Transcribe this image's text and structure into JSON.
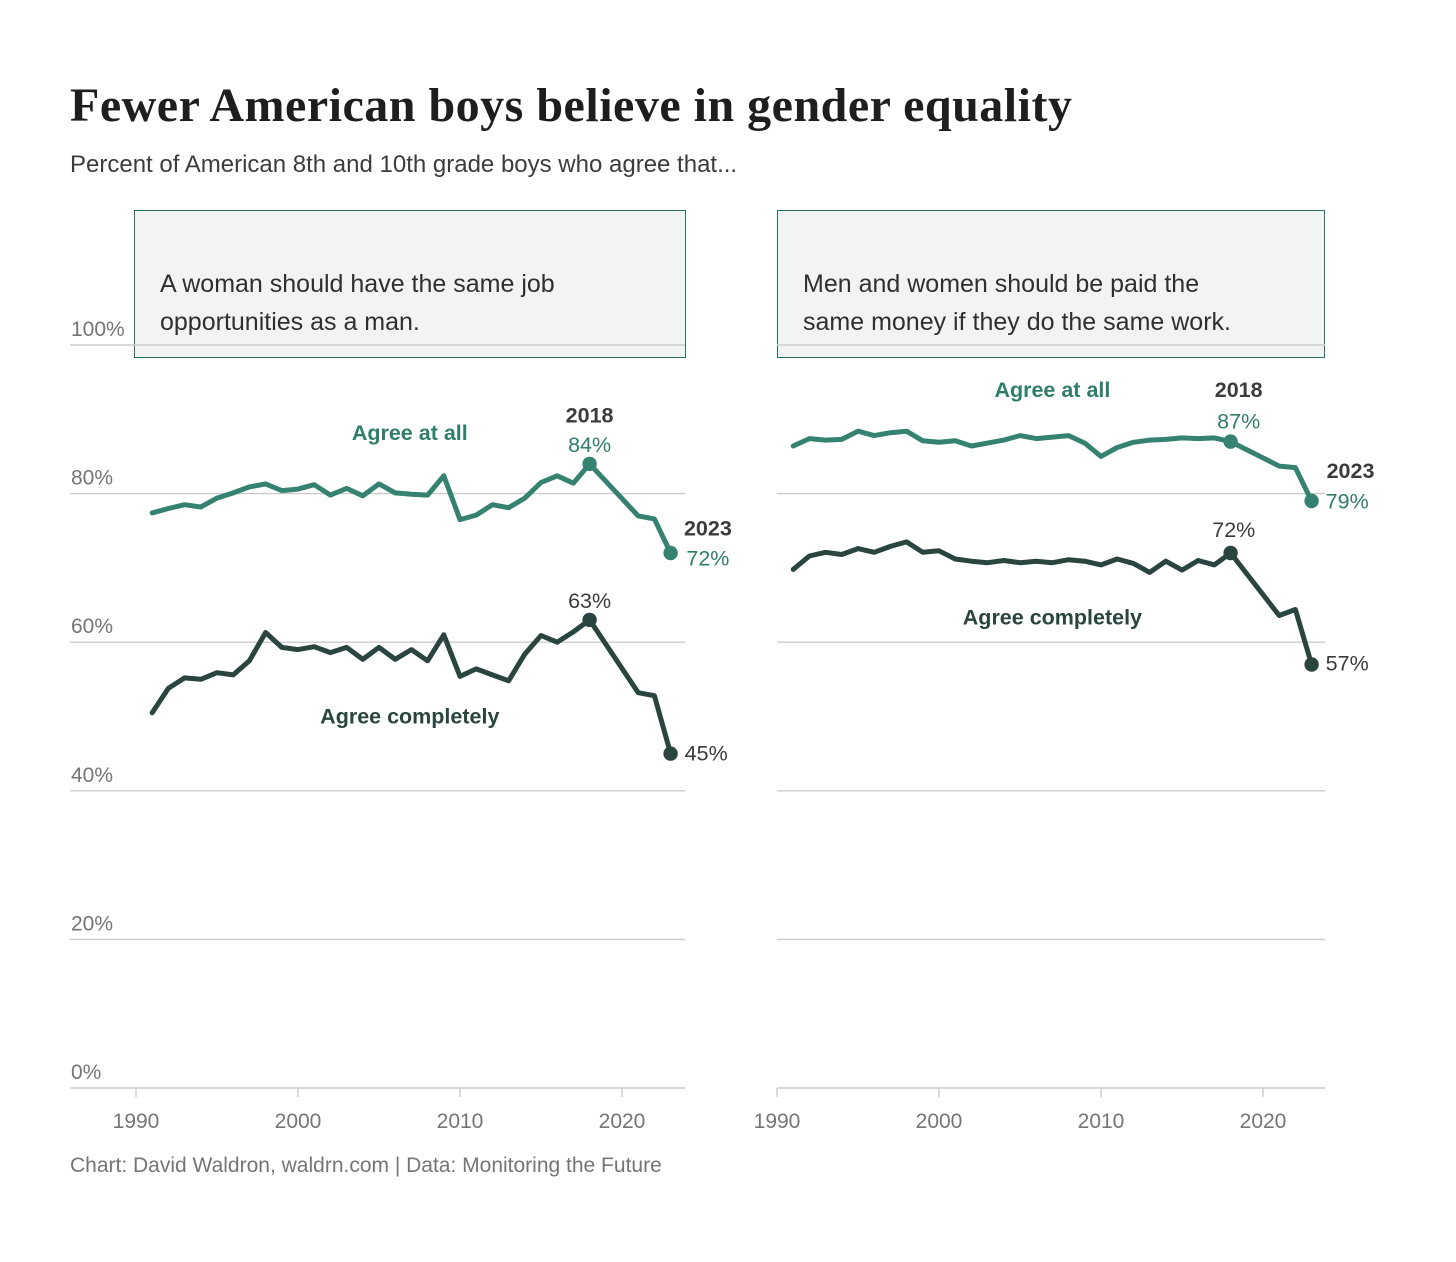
{
  "header": {
    "title": "Fewer American boys believe in gender equality",
    "subtitle": "Percent of American 8th and 10th grade boys who agree that..."
  },
  "footer": {
    "credit": "Chart: David Waldron, waldrn.com | Data: Monitoring the Future"
  },
  "colors": {
    "agree_at_all": "#368270",
    "agree_completely": "#2a443f",
    "teal_text": "#2f7e6b",
    "dark_text": "#3b3b3b",
    "grid": "#cbcbcb",
    "axis_text": "#757575",
    "box_border": "#2e6e62",
    "box_bg": "#f2f4f3"
  },
  "chart_data": [
    {
      "type": "line",
      "question": "A woman should have the same job\nopportunities as a man.",
      "x": {
        "min": 1990,
        "max": 2023,
        "ticks": [
          {
            "value": 1990,
            "label": "1990"
          },
          {
            "value": 2000,
            "label": "2000"
          },
          {
            "value": 2010,
            "label": "2010"
          },
          {
            "value": 2020,
            "label": "2020"
          }
        ]
      },
      "y": {
        "unit": "%",
        "min": 0,
        "max": 100,
        "ticks": [
          {
            "value": 100,
            "label": "100%"
          },
          {
            "value": 80,
            "label": "80%"
          },
          {
            "value": 60,
            "label": "60%"
          },
          {
            "value": 40,
            "label": "40%"
          },
          {
            "value": 20,
            "label": "20%"
          },
          {
            "value": 0,
            "label": "0%"
          }
        ]
      },
      "series": [
        {
          "name": "Agree at all",
          "color_key": "agree_at_all",
          "points": [
            [
              1991,
              77.4
            ],
            [
              1992,
              78.0
            ],
            [
              1993,
              78.5
            ],
            [
              1994,
              78.2
            ],
            [
              1995,
              79.4
            ],
            [
              1996,
              80.1
            ],
            [
              1997,
              80.9
            ],
            [
              1998,
              81.3
            ],
            [
              1999,
              80.4
            ],
            [
              2000,
              80.6
            ],
            [
              2001,
              81.2
            ],
            [
              2002,
              79.8
            ],
            [
              2003,
              80.7
            ],
            [
              2004,
              79.7
            ],
            [
              2005,
              81.3
            ],
            [
              2006,
              80.1
            ],
            [
              2007,
              79.9
            ],
            [
              2008,
              79.8
            ],
            [
              2009,
              82.4
            ],
            [
              2010,
              76.5
            ],
            [
              2011,
              77.1
            ],
            [
              2012,
              78.5
            ],
            [
              2013,
              78.1
            ],
            [
              2014,
              79.4
            ],
            [
              2015,
              81.5
            ],
            [
              2016,
              82.4
            ],
            [
              2017,
              81.4
            ],
            [
              2018,
              84
            ],
            [
              2021,
              77.0
            ],
            [
              2022,
              76.6
            ],
            [
              2023,
              72
            ]
          ]
        },
        {
          "name": "Agree completely",
          "color_key": "agree_completely",
          "points": [
            [
              1991,
              50.5
            ],
            [
              1992,
              53.8
            ],
            [
              1993,
              55.2
            ],
            [
              1994,
              55.0
            ],
            [
              1995,
              55.9
            ],
            [
              1996,
              55.6
            ],
            [
              1997,
              57.5
            ],
            [
              1998,
              61.3
            ],
            [
              1999,
              59.3
            ],
            [
              2000,
              59.0
            ],
            [
              2001,
              59.4
            ],
            [
              2002,
              58.6
            ],
            [
              2003,
              59.3
            ],
            [
              2004,
              57.7
            ],
            [
              2005,
              59.3
            ],
            [
              2006,
              57.7
            ],
            [
              2007,
              59.0
            ],
            [
              2008,
              57.5
            ],
            [
              2009,
              61.0
            ],
            [
              2010,
              55.4
            ],
            [
              2011,
              56.4
            ],
            [
              2012,
              55.6
            ],
            [
              2013,
              54.8
            ],
            [
              2014,
              58.4
            ],
            [
              2015,
              60.9
            ],
            [
              2016,
              60.0
            ],
            [
              2017,
              61.4
            ],
            [
              2018,
              63
            ],
            [
              2021,
              53.2
            ],
            [
              2022,
              52.8
            ],
            [
              2023,
              45
            ]
          ]
        }
      ],
      "markers": [
        {
          "series": 0,
          "year": 2018
        },
        {
          "series": 0,
          "year": 2023
        },
        {
          "series": 1,
          "year": 2018
        },
        {
          "series": 1,
          "year": 2023
        }
      ],
      "annotations": [
        {
          "text": "Agree at all",
          "year": 2006.9,
          "pct": 88.2,
          "color": "teal_text",
          "bold": true
        },
        {
          "text": "2018",
          "year": 2018,
          "pct": 90.6,
          "color": "dark_text",
          "bold": true
        },
        {
          "text": "84%",
          "year": 2018,
          "pct": 86.6,
          "color": "teal_text"
        },
        {
          "text": "2023",
          "year": 2025.3,
          "pct": 75.4,
          "color": "dark_text",
          "bold": true
        },
        {
          "text": "72%",
          "year": 2025.3,
          "pct": 71.3,
          "color": "teal_text"
        },
        {
          "text": "63%",
          "year": 2018,
          "pct": 65.6,
          "color": "dark_text"
        },
        {
          "text": "Agree completely",
          "year": 2006.9,
          "pct": 50.1,
          "color": "agree_completely",
          "bold": true
        },
        {
          "text": "45%",
          "year": 2025.2,
          "pct": 45.1,
          "color": "dark_text"
        }
      ]
    },
    {
      "type": "line",
      "question": "Men and women should be paid the\nsame money if they do the same work.",
      "x": {
        "min": 1990,
        "max": 2023,
        "ticks": [
          {
            "value": 1990,
            "label": "1990"
          },
          {
            "value": 2000,
            "label": "2000"
          },
          {
            "value": 2010,
            "label": "2010"
          },
          {
            "value": 2020,
            "label": "2020"
          }
        ]
      },
      "y": {
        "unit": "%",
        "min": 0,
        "max": 100,
        "ticks": [
          {
            "value": 100,
            "label": ""
          },
          {
            "value": 80,
            "label": ""
          },
          {
            "value": 60,
            "label": ""
          },
          {
            "value": 40,
            "label": ""
          },
          {
            "value": 20,
            "label": ""
          },
          {
            "value": 0,
            "label": ""
          }
        ]
      },
      "series": [
        {
          "name": "Agree at all",
          "color_key": "agree_at_all",
          "points": [
            [
              1991,
              86.4
            ],
            [
              1992,
              87.4
            ],
            [
              1993,
              87.2
            ],
            [
              1994,
              87.3
            ],
            [
              1995,
              88.4
            ],
            [
              1996,
              87.8
            ],
            [
              1997,
              88.2
            ],
            [
              1998,
              88.4
            ],
            [
              1999,
              87.1
            ],
            [
              2000,
              86.9
            ],
            [
              2001,
              87.1
            ],
            [
              2002,
              86.4
            ],
            [
              2003,
              86.8
            ],
            [
              2004,
              87.2
            ],
            [
              2005,
              87.8
            ],
            [
              2006,
              87.4
            ],
            [
              2007,
              87.6
            ],
            [
              2008,
              87.8
            ],
            [
              2009,
              86.8
            ],
            [
              2010,
              85.0
            ],
            [
              2011,
              86.2
            ],
            [
              2012,
              86.9
            ],
            [
              2013,
              87.2
            ],
            [
              2014,
              87.3
            ],
            [
              2015,
              87.5
            ],
            [
              2016,
              87.4
            ],
            [
              2017,
              87.5
            ],
            [
              2018,
              87
            ],
            [
              2021,
              83.7
            ],
            [
              2022,
              83.5
            ],
            [
              2023,
              79
            ]
          ]
        },
        {
          "name": "Agree completely",
          "color_key": "agree_completely",
          "points": [
            [
              1991,
              69.8
            ],
            [
              1992,
              71.6
            ],
            [
              1993,
              72.1
            ],
            [
              1994,
              71.8
            ],
            [
              1995,
              72.6
            ],
            [
              1996,
              72.1
            ],
            [
              1997,
              72.9
            ],
            [
              1998,
              73.5
            ],
            [
              1999,
              72.1
            ],
            [
              2000,
              72.3
            ],
            [
              2001,
              71.2
            ],
            [
              2002,
              70.9
            ],
            [
              2003,
              70.7
            ],
            [
              2004,
              71.0
            ],
            [
              2005,
              70.7
            ],
            [
              2006,
              70.9
            ],
            [
              2007,
              70.7
            ],
            [
              2008,
              71.1
            ],
            [
              2009,
              70.9
            ],
            [
              2010,
              70.4
            ],
            [
              2011,
              71.2
            ],
            [
              2012,
              70.6
            ],
            [
              2013,
              69.4
            ],
            [
              2014,
              70.9
            ],
            [
              2015,
              69.7
            ],
            [
              2016,
              71.0
            ],
            [
              2017,
              70.4
            ],
            [
              2018,
              72
            ],
            [
              2021,
              63.6
            ],
            [
              2022,
              64.4
            ],
            [
              2023,
              57
            ]
          ]
        }
      ],
      "markers": [
        {
          "series": 0,
          "year": 2018
        },
        {
          "series": 0,
          "year": 2023
        },
        {
          "series": 1,
          "year": 2018
        },
        {
          "series": 1,
          "year": 2023
        }
      ],
      "annotations": [
        {
          "text": "Agree at all",
          "year": 2007,
          "pct": 94.0,
          "color": "teal_text",
          "bold": true
        },
        {
          "text": "2018",
          "year": 2018.5,
          "pct": 94.0,
          "color": "dark_text",
          "bold": true
        },
        {
          "text": "87%",
          "year": 2018.5,
          "pct": 89.8,
          "color": "teal_text"
        },
        {
          "text": "2023",
          "year": 2025.4,
          "pct": 83.1,
          "color": "dark_text",
          "bold": true
        },
        {
          "text": "79%",
          "year": 2025.2,
          "pct": 79.0,
          "color": "teal_text"
        },
        {
          "text": "72%",
          "year": 2018.2,
          "pct": 75.2,
          "color": "dark_text"
        },
        {
          "text": "Agree completely",
          "year": 2007,
          "pct": 63.4,
          "color": "agree_completely",
          "bold": true
        },
        {
          "text": "57%",
          "year": 2025.2,
          "pct": 57.2,
          "color": "dark_text"
        }
      ]
    }
  ]
}
